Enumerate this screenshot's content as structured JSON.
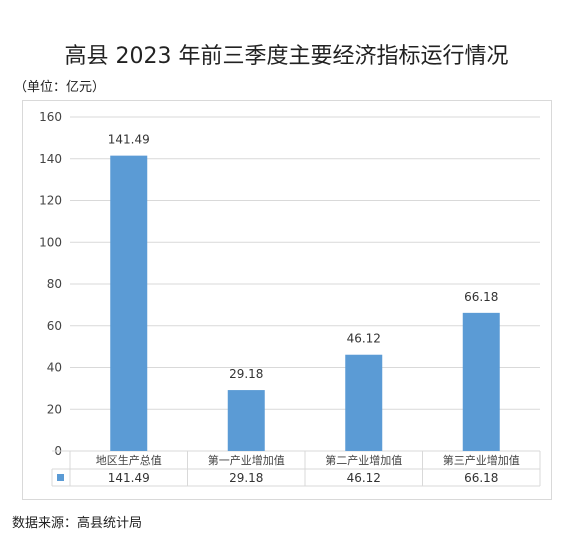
{
  "title": "高县 2023 年前三季度主要经济指标运行情况",
  "unit_label": "（单位：亿元）",
  "source": "数据来源：高县统计局",
  "colors": {
    "bar": "#5b9bd5",
    "grid": "#d9d9d9"
  },
  "chart_data": {
    "type": "bar",
    "categories": [
      "地区生产总值",
      "第一产业增加值",
      "第二产业增加值",
      "第三产业增加值"
    ],
    "values": [
      141.49,
      29.18,
      46.12,
      66.18
    ],
    "value_labels": [
      "141.49",
      "29.18",
      "46.12",
      "66.18"
    ],
    "title": "高县 2023 年前三季度主要经济指标运行情况",
    "ylabel": "（单位：亿元）",
    "ylim": [
      0,
      160
    ],
    "yticks": [
      "0",
      "20",
      "40",
      "60",
      "80",
      "100",
      "120",
      "140",
      "160"
    ],
    "grid": true,
    "data_table": true
  }
}
